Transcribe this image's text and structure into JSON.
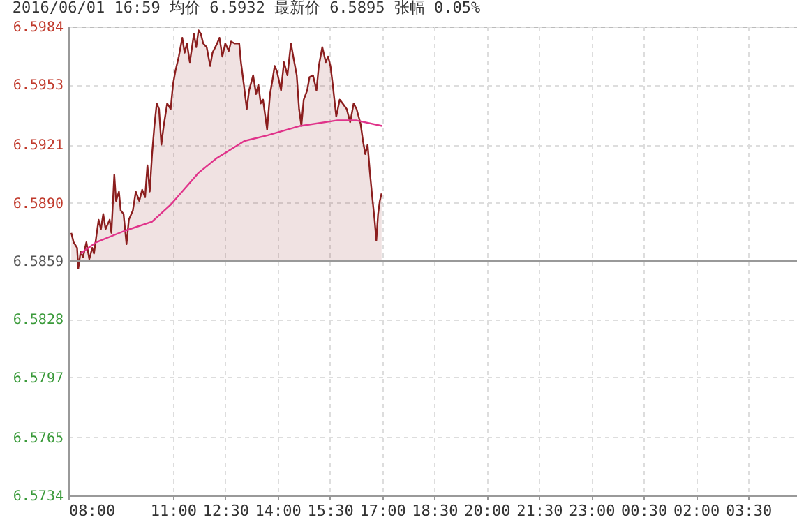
{
  "chart_data": {
    "type": "area",
    "title": "2016/06/01 16:59  均价 6.5932  最新价 6.5895  张幅 0.05%",
    "xlim": [
      "2016-06-01T08:00",
      "2016-06-02T04:54"
    ],
    "xticks": [
      {
        "value": "2016-06-01T08:00",
        "label": "08:00"
      },
      {
        "value": "2016-06-01T11:00",
        "label": "11:00"
      },
      {
        "value": "2016-06-01T12:30",
        "label": "12:30"
      },
      {
        "value": "2016-06-01T14:00",
        "label": "14:00"
      },
      {
        "value": "2016-06-01T15:30",
        "label": "15:30"
      },
      {
        "value": "2016-06-01T17:00",
        "label": "17:00"
      },
      {
        "value": "2016-06-01T18:30",
        "label": "18:30"
      },
      {
        "value": "2016-06-01T20:00",
        "label": "20:00"
      },
      {
        "value": "2016-06-01T21:30",
        "label": "21:30"
      },
      {
        "value": "2016-06-01T23:00",
        "label": "23:00"
      },
      {
        "value": "2016-06-02T00:30",
        "label": "00:30"
      },
      {
        "value": "2016-06-02T02:00",
        "label": "02:00"
      },
      {
        "value": "2016-06-02T03:30",
        "label": "03:30"
      }
    ],
    "ylim": [
      6.5734,
      6.5984
    ],
    "yticks": [
      6.5734,
      6.5765,
      6.5797,
      6.5828,
      6.5859,
      {
        "value": 6.589,
        "label": "6.5890"
      },
      6.5921,
      6.5953,
      6.5984
    ],
    "grid": true,
    "ref_lines": [
      {
        "axis": "y",
        "value": 6.5859,
        "color": "#999999"
      }
    ],
    "series": [
      {
        "color": "#8b1e1e",
        "x": [
          "2016-06-01T08:05",
          "2016-06-01T08:09",
          "2016-06-01T08:15",
          "2016-06-01T08:17",
          "2016-06-01T08:21",
          "2016-06-01T08:25",
          "2016-06-01T08:31",
          "2016-06-01T08:36",
          "2016-06-01T08:41",
          "2016-06-01T08:44",
          "2016-06-01T08:48",
          "2016-06-01T08:52",
          "2016-06-01T08:56",
          "2016-06-01T09:00",
          "2016-06-01T09:04",
          "2016-06-01T09:11",
          "2016-06-01T09:14",
          "2016-06-01T09:19",
          "2016-06-01T09:22",
          "2016-06-01T09:27",
          "2016-06-01T09:30",
          "2016-06-01T09:35",
          "2016-06-01T09:40",
          "2016-06-01T09:44",
          "2016-06-01T09:51",
          "2016-06-01T09:56",
          "2016-06-01T10:02",
          "2016-06-01T10:07",
          "2016-06-01T10:12",
          "2016-06-01T10:16",
          "2016-06-01T10:20",
          "2016-06-01T10:24",
          "2016-06-01T10:28",
          "2016-06-01T10:32",
          "2016-06-01T10:36",
          "2016-06-01T10:40",
          "2016-06-01T10:44",
          "2016-06-01T10:50",
          "2016-06-01T10:56",
          "2016-06-01T11:00",
          "2016-06-01T11:04",
          "2016-06-01T11:10",
          "2016-06-01T11:16",
          "2016-06-01T11:20",
          "2016-06-01T11:24",
          "2016-06-01T11:29",
          "2016-06-01T11:36",
          "2016-06-01T11:40",
          "2016-06-01T11:44",
          "2016-06-01T11:48",
          "2016-06-01T11:52",
          "2016-06-01T11:58",
          "2016-06-01T12:04",
          "2016-06-01T12:08",
          "2016-06-01T12:16",
          "2016-06-01T12:20",
          "2016-06-01T12:25",
          "2016-06-01T12:30",
          "2016-06-01T12:36",
          "2016-06-01T12:40",
          "2016-06-01T12:46",
          "2016-06-01T12:54",
          "2016-06-01T12:57",
          "2016-06-01T13:02",
          "2016-06-01T13:07",
          "2016-06-01T13:11",
          "2016-06-01T13:18",
          "2016-06-01T13:23",
          "2016-06-01T13:27",
          "2016-06-01T13:31",
          "2016-06-01T13:35",
          "2016-06-01T13:42",
          "2016-06-01T13:47",
          "2016-06-01T13:51",
          "2016-06-01T13:55",
          "2016-06-01T13:59",
          "2016-06-01T14:06",
          "2016-06-01T14:11",
          "2016-06-01T14:17",
          "2016-06-01T14:23",
          "2016-06-01T14:27",
          "2016-06-01T14:33",
          "2016-06-01T14:37",
          "2016-06-01T14:41",
          "2016-06-01T14:45",
          "2016-06-01T14:51",
          "2016-06-01T14:55",
          "2016-06-01T15:01",
          "2016-06-01T15:07",
          "2016-06-01T15:11",
          "2016-06-01T15:17",
          "2016-06-01T15:23",
          "2016-06-01T15:27",
          "2016-06-01T15:31",
          "2016-06-01T15:35",
          "2016-06-01T15:41",
          "2016-06-01T15:47",
          "2016-06-01T15:52",
          "2016-06-01T15:59",
          "2016-06-01T16:05",
          "2016-06-01T16:11",
          "2016-06-01T16:16",
          "2016-06-01T16:23",
          "2016-06-01T16:27",
          "2016-06-01T16:31",
          "2016-06-01T16:35",
          "2016-06-01T16:39",
          "2016-06-01T16:43",
          "2016-06-01T16:47",
          "2016-06-01T16:50",
          "2016-06-01T16:53",
          "2016-06-01T16:56",
          "2016-06-01T16:59"
        ],
        "values": [
          6.5874,
          6.5869,
          6.5866,
          6.5855,
          6.5864,
          6.5861,
          6.5869,
          6.586,
          6.5866,
          6.5863,
          6.5872,
          6.5881,
          6.5876,
          6.5884,
          6.5876,
          6.5881,
          6.5874,
          6.5905,
          6.5891,
          6.5896,
          6.5886,
          6.5884,
          6.5868,
          6.5881,
          6.5886,
          6.5896,
          6.5891,
          6.5897,
          6.5893,
          6.591,
          6.5896,
          6.5916,
          6.5931,
          6.5943,
          6.594,
          6.5921,
          6.5931,
          6.5943,
          6.594,
          6.5953,
          6.596,
          6.5968,
          6.5978,
          6.597,
          6.5975,
          6.5965,
          6.598,
          6.5973,
          6.5982,
          6.598,
          6.5975,
          6.5973,
          6.5963,
          6.597,
          6.5975,
          6.5978,
          6.5968,
          6.5975,
          6.5971,
          6.5976,
          6.5975,
          6.5975,
          6.5965,
          6.5953,
          6.594,
          6.595,
          6.5958,
          6.5948,
          6.5953,
          6.5943,
          6.5945,
          6.5929,
          6.5948,
          6.5955,
          6.5963,
          6.596,
          6.595,
          6.5965,
          6.5958,
          6.5975,
          6.5968,
          6.5958,
          6.594,
          6.5931,
          6.5945,
          6.595,
          6.5957,
          6.5958,
          6.595,
          6.5963,
          6.5973,
          6.5965,
          6.5968,
          6.5963,
          6.5953,
          6.5936,
          6.5945,
          6.5943,
          6.594,
          6.5933,
          6.5943,
          6.594,
          6.5932,
          6.5923,
          6.5916,
          6.5921,
          6.5906,
          6.5893,
          6.5881,
          6.587,
          6.5884,
          6.5891,
          6.5895
        ]
      },
      {
        "type": "line",
        "color": "#e0338a",
        "x": [
          "2016-06-01T08:21",
          "2016-06-01T08:48",
          "2016-06-01T09:36",
          "2016-06-01T10:24",
          "2016-06-01T10:56",
          "2016-06-01T11:44",
          "2016-06-01T12:16",
          "2016-06-01T13:03",
          "2016-06-01T13:43",
          "2016-06-01T14:39",
          "2016-06-01T15:43",
          "2016-06-01T16:15",
          "2016-06-01T17:00"
        ],
        "values": [
          6.5863,
          6.5869,
          6.5875,
          6.588,
          6.5889,
          6.5906,
          6.5914,
          6.5923,
          6.5926,
          6.5931,
          6.5934,
          6.5934,
          6.5931
        ]
      }
    ]
  }
}
